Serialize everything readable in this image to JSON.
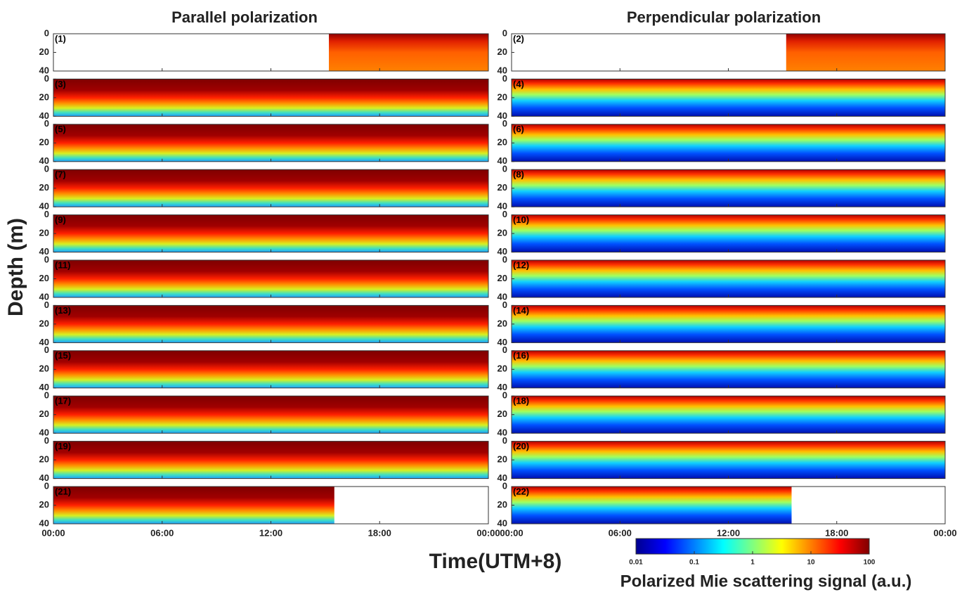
{
  "chart_data": {
    "type": "heatmap",
    "titles": [
      "Parallel polarization",
      "Perpendicular polarization"
    ],
    "ylabel": "Depth (m)",
    "xlabel": "Time(UTM+8)",
    "xlim": [
      0,
      24
    ],
    "xticks": [
      {
        "value": 0,
        "label": "00:00"
      },
      {
        "value": 6,
        "label": "06:00"
      },
      {
        "value": 12,
        "label": "12:00"
      },
      {
        "value": 18,
        "label": "18:00"
      },
      {
        "value": 24,
        "label": "00:00"
      }
    ],
    "ylim": [
      0,
      40
    ],
    "yticks": [
      0,
      20,
      40
    ],
    "panels": [
      {
        "label": "(1)",
        "coverage": [
          15.2,
          24
        ]
      },
      {
        "label": "(2)",
        "coverage": [
          15.2,
          24
        ]
      },
      {
        "label": "(3)",
        "coverage": [
          0,
          24
        ]
      },
      {
        "label": "(4)",
        "coverage": [
          0,
          24
        ]
      },
      {
        "label": "(5)",
        "coverage": [
          0,
          24
        ]
      },
      {
        "label": "(6)",
        "coverage": [
          0,
          24
        ]
      },
      {
        "label": "(7)",
        "coverage": [
          0,
          24
        ]
      },
      {
        "label": "(8)",
        "coverage": [
          0,
          24
        ]
      },
      {
        "label": "(9)",
        "coverage": [
          0,
          24
        ]
      },
      {
        "label": "(10)",
        "coverage": [
          0,
          24
        ]
      },
      {
        "label": "(11)",
        "coverage": [
          0,
          24
        ]
      },
      {
        "label": "(12)",
        "coverage": [
          0,
          24
        ]
      },
      {
        "label": "(13)",
        "coverage": [
          0,
          24
        ]
      },
      {
        "label": "(14)",
        "coverage": [
          0,
          24
        ]
      },
      {
        "label": "(15)",
        "coverage": [
          0,
          24
        ]
      },
      {
        "label": "(16)",
        "coverage": [
          0,
          24
        ]
      },
      {
        "label": "(17)",
        "coverage": [
          0,
          24
        ]
      },
      {
        "label": "(18)",
        "coverage": [
          0,
          24
        ]
      },
      {
        "label": "(19)",
        "coverage": [
          0,
          24
        ]
      },
      {
        "label": "(20)",
        "coverage": [
          0,
          24
        ]
      },
      {
        "label": "(21)",
        "coverage": [
          0,
          15.5
        ]
      },
      {
        "label": "(22)",
        "coverage": [
          0,
          15.5
        ]
      }
    ],
    "colorbar": {
      "label": "Polarized Mie scattering signal (a.u.)",
      "log": true,
      "lim": [
        0.01,
        100
      ],
      "ticks": [
        0.01,
        0.1,
        1,
        10,
        100
      ],
      "colormap": "jet"
    }
  }
}
